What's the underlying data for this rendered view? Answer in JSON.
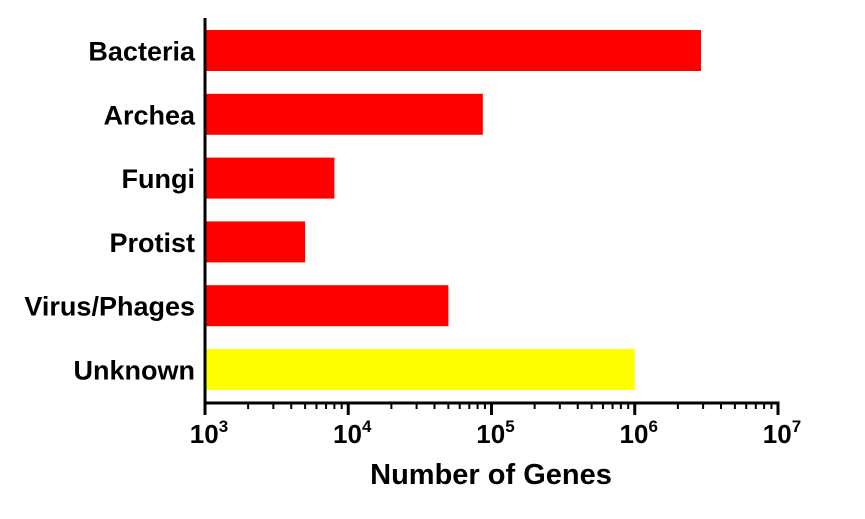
{
  "chart_data": {
    "type": "bar",
    "orientation": "horizontal",
    "title": "",
    "xlabel": "Number of Genes",
    "ylabel": "",
    "x_scale": "log",
    "xlim": [
      1000,
      10000000
    ],
    "x_ticks": [
      {
        "value": 1000,
        "base": "10",
        "exp": "3"
      },
      {
        "value": 10000,
        "base": "10",
        "exp": "4"
      },
      {
        "value": 100000,
        "base": "10",
        "exp": "5"
      },
      {
        "value": 1000000,
        "base": "10",
        "exp": "6"
      },
      {
        "value": 10000000,
        "base": "10",
        "exp": "7"
      }
    ],
    "categories": [
      "Bacteria",
      "Archea",
      "Fungi",
      "Protist",
      "Virus/Phages",
      "Unknown"
    ],
    "values": [
      2900000,
      87000,
      8000,
      5000,
      50000,
      1000000
    ],
    "bar_colors": [
      "#ff0000",
      "#ff0000",
      "#ff0000",
      "#ff0000",
      "#ff0000",
      "#ffff00"
    ],
    "grid": false,
    "legend": "none"
  }
}
